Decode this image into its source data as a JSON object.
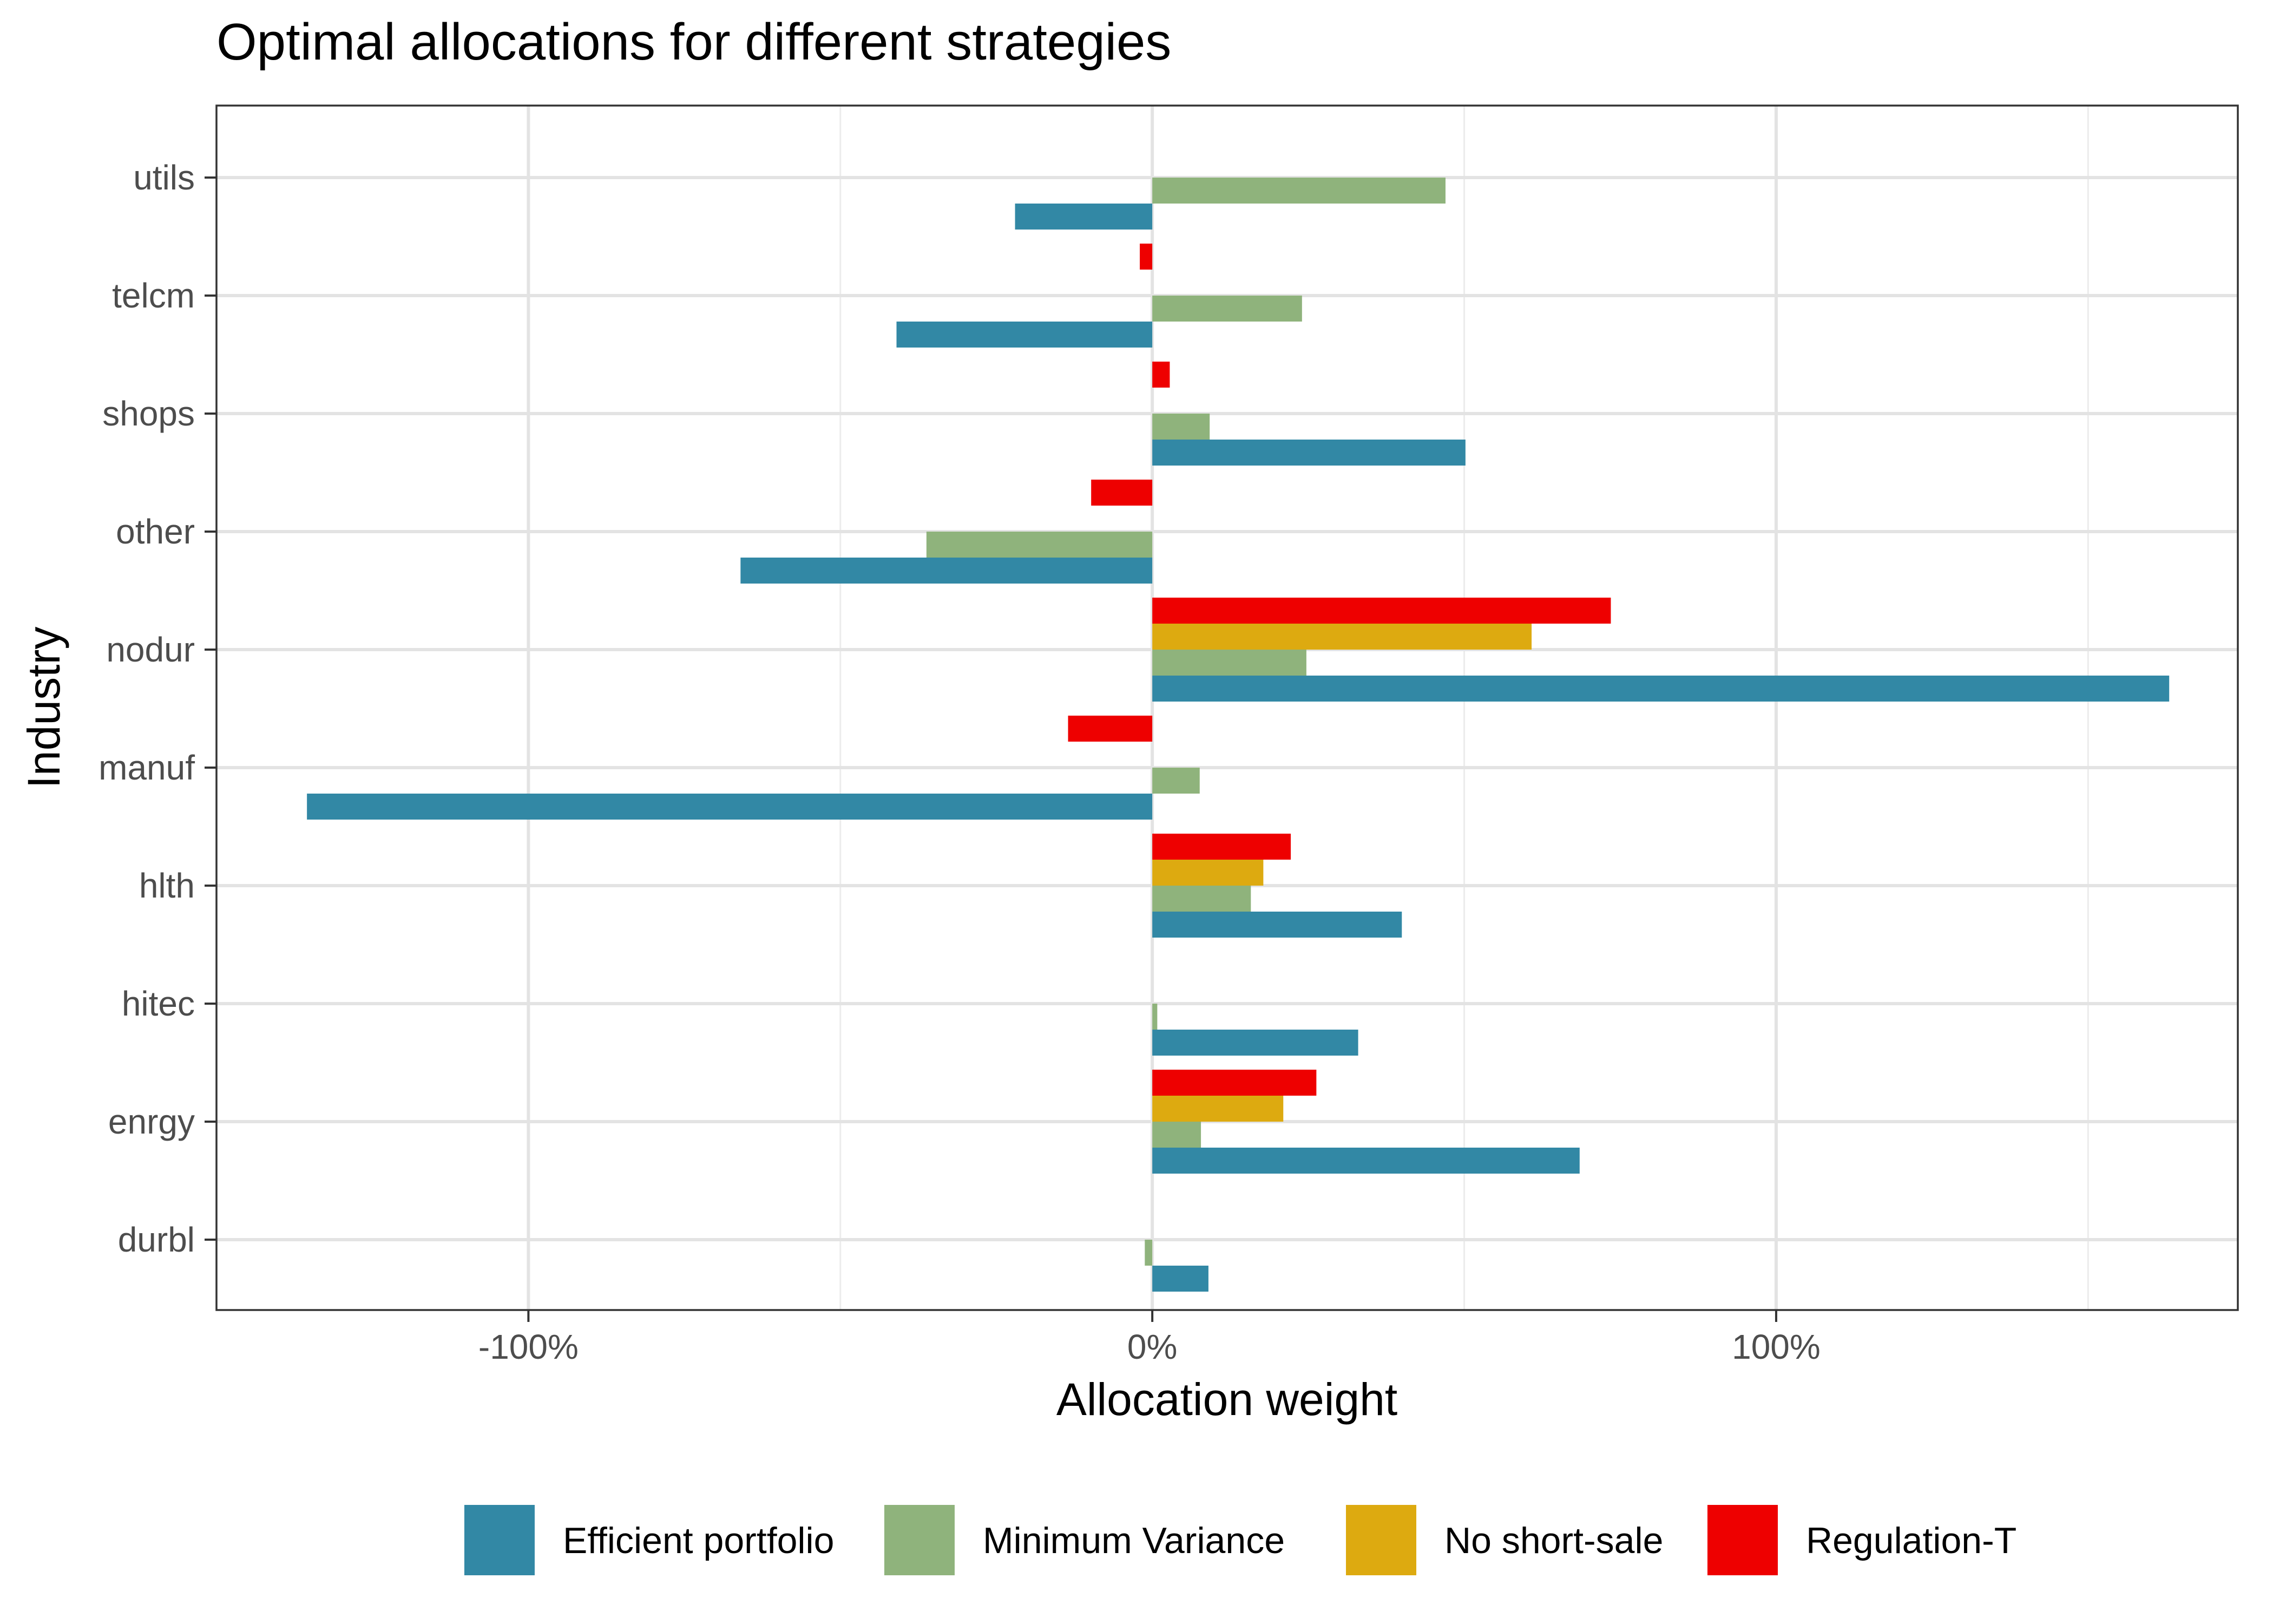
{
  "chart_data": {
    "type": "bar",
    "orientation": "horizontal",
    "title": "Optimal allocations for different strategies",
    "xlabel": "Allocation weight",
    "ylabel": "Industry",
    "xlim": [
      -1.5,
      1.74
    ],
    "x_ticks": [
      {
        "value": -1.0,
        "label": "-100%"
      },
      {
        "value": 0.0,
        "label": "0%"
      },
      {
        "value": 1.0,
        "label": "100%"
      }
    ],
    "x_minor_ticks": [
      -0.5,
      0.5,
      1.5
    ],
    "categories": [
      "durbl",
      "enrgy",
      "hitec",
      "hlth",
      "manuf",
      "nodur",
      "other",
      "shops",
      "telcm",
      "utils"
    ],
    "series": [
      {
        "name": "Efficient portfolio",
        "color": "#3288A5",
        "values": [
          0.09,
          0.685,
          0.33,
          0.4,
          -1.355,
          1.63,
          -0.66,
          0.502,
          -0.41,
          -0.22
        ]
      },
      {
        "name": "Minimum Variance",
        "color": "#8FB37C",
        "values": [
          -0.012,
          0.078,
          0.008,
          0.158,
          0.076,
          0.247,
          -0.362,
          0.092,
          0.24,
          0.47
        ]
      },
      {
        "name": "No short-sale",
        "color": "#DDAA10",
        "values": [
          0,
          0.21,
          0,
          0.178,
          0,
          0.608,
          0,
          0,
          0,
          0
        ]
      },
      {
        "name": "Regulation-T",
        "color": "#EE0000",
        "values": [
          0,
          0.263,
          0,
          0.222,
          -0.135,
          0.735,
          -0.098,
          0.028,
          -0.02,
          0
        ]
      }
    ],
    "legend_position": "bottom",
    "grid": true
  }
}
